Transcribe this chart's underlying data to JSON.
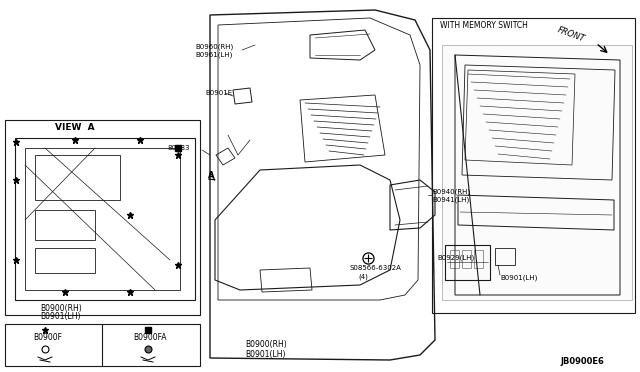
{
  "bg_color": "#ffffff",
  "line_color": "#1a1a1a",
  "text_color": "#000000",
  "diagram_id": "JB0900E6",
  "parts": {
    "main_door_rh": "B0900(RH)",
    "main_door_lh": "B0901(LH)",
    "clip1": "B0900F",
    "clip2": "B0900FA",
    "connector": "80983",
    "harness": "B0901E",
    "handle_rh": "B0960(RH)",
    "handle_lh": "B0961(LH)",
    "armrest_rh": "B0940(RH)",
    "armrest_lh": "B0941(LH)",
    "screw": "S08566-6302A",
    "screw_qty": "(4)",
    "switch_lh": "B0929(LH)",
    "panel_lh": "B0901(LH)",
    "view_a_label": "VIEW  A",
    "memory_switch_label": "WITH MEMORY SWITCH",
    "front_label": "FRONT"
  },
  "figsize": [
    6.4,
    3.72
  ],
  "dpi": 100
}
